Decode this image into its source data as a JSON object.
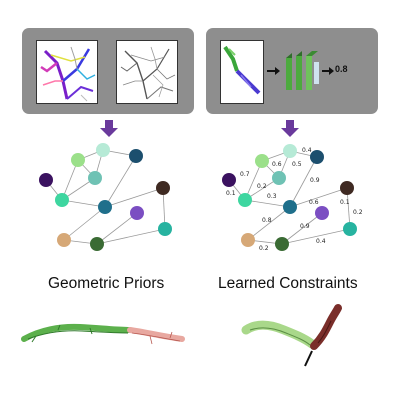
{
  "left": {
    "caption": "Geometric Priors"
  },
  "right": {
    "caption": "Learned Constraints",
    "score": "0.8",
    "edge_weights": [
      "0.4",
      "0.6",
      "0.5",
      "0.7",
      "0.2",
      "0.3",
      "0.1",
      "0.9",
      "0.8",
      "0.6",
      "0.9",
      "0.1",
      "0.2",
      "0.2",
      "0.4"
    ]
  },
  "colors": {
    "panel": "#8e8e8e",
    "arrow": "#6a3a9c",
    "node_teal_dark": "#1f6f8b",
    "node_green_light": "#9be08a",
    "node_mint": "#b6ead6",
    "node_seafoam": "#6fc2b4",
    "node_navy": "#1c4f6e",
    "node_purple": "#3b1260",
    "node_aqua": "#3ed6a0",
    "node_brown": "#3f2a22",
    "node_violet": "#7b4ec2",
    "node_tan": "#d6a877",
    "node_forest": "#3a6b34",
    "node_cyan": "#27b3a0",
    "segment_green": "#5cb04c",
    "segment_pink": "#e8a8a0",
    "segment_light_green": "#a9d88a",
    "segment_maroon": "#7a2e2a"
  },
  "icons": [
    "neuron-multicolor-thumbnail",
    "neuron-gray-thumbnail",
    "neuron-pair-thumbnail",
    "arrow-right-icon",
    "cnn-layers-icon",
    "arrow-down-icon"
  ]
}
